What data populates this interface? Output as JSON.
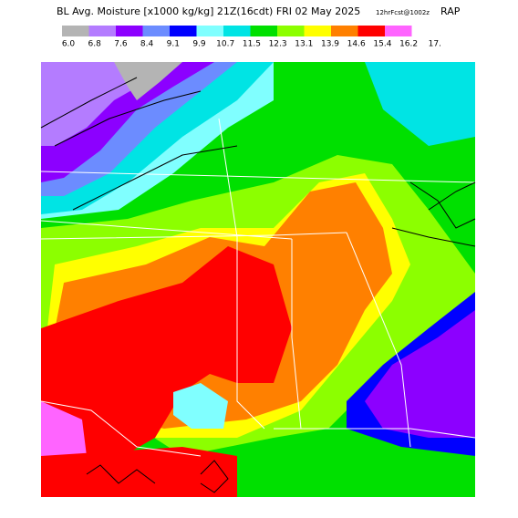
{
  "header": {
    "title": "BL Avg. Moisture [x1000 kg/kg] 21Z(16cdt) FRI 02 May 2025",
    "forecast": "12hrFcst@1002z",
    "model": "RAP"
  },
  "colorbar": {
    "labels": [
      "6.0",
      "6.8",
      "7.6",
      "8.4",
      "9.1",
      "9.9",
      "10.7",
      "11.5",
      "12.3",
      "13.1",
      "13.9",
      "14.6",
      "15.4",
      "16.2",
      "17."
    ],
    "colors": [
      "#b4b4b4",
      "#b47cff",
      "#8c00ff",
      "#6c8cff",
      "#0000ff",
      "#80ffff",
      "#00e4e4",
      "#00e000",
      "#8cff00",
      "#ffff00",
      "#ff8000",
      "#ff0000",
      "#ff64ff"
    ]
  }
}
